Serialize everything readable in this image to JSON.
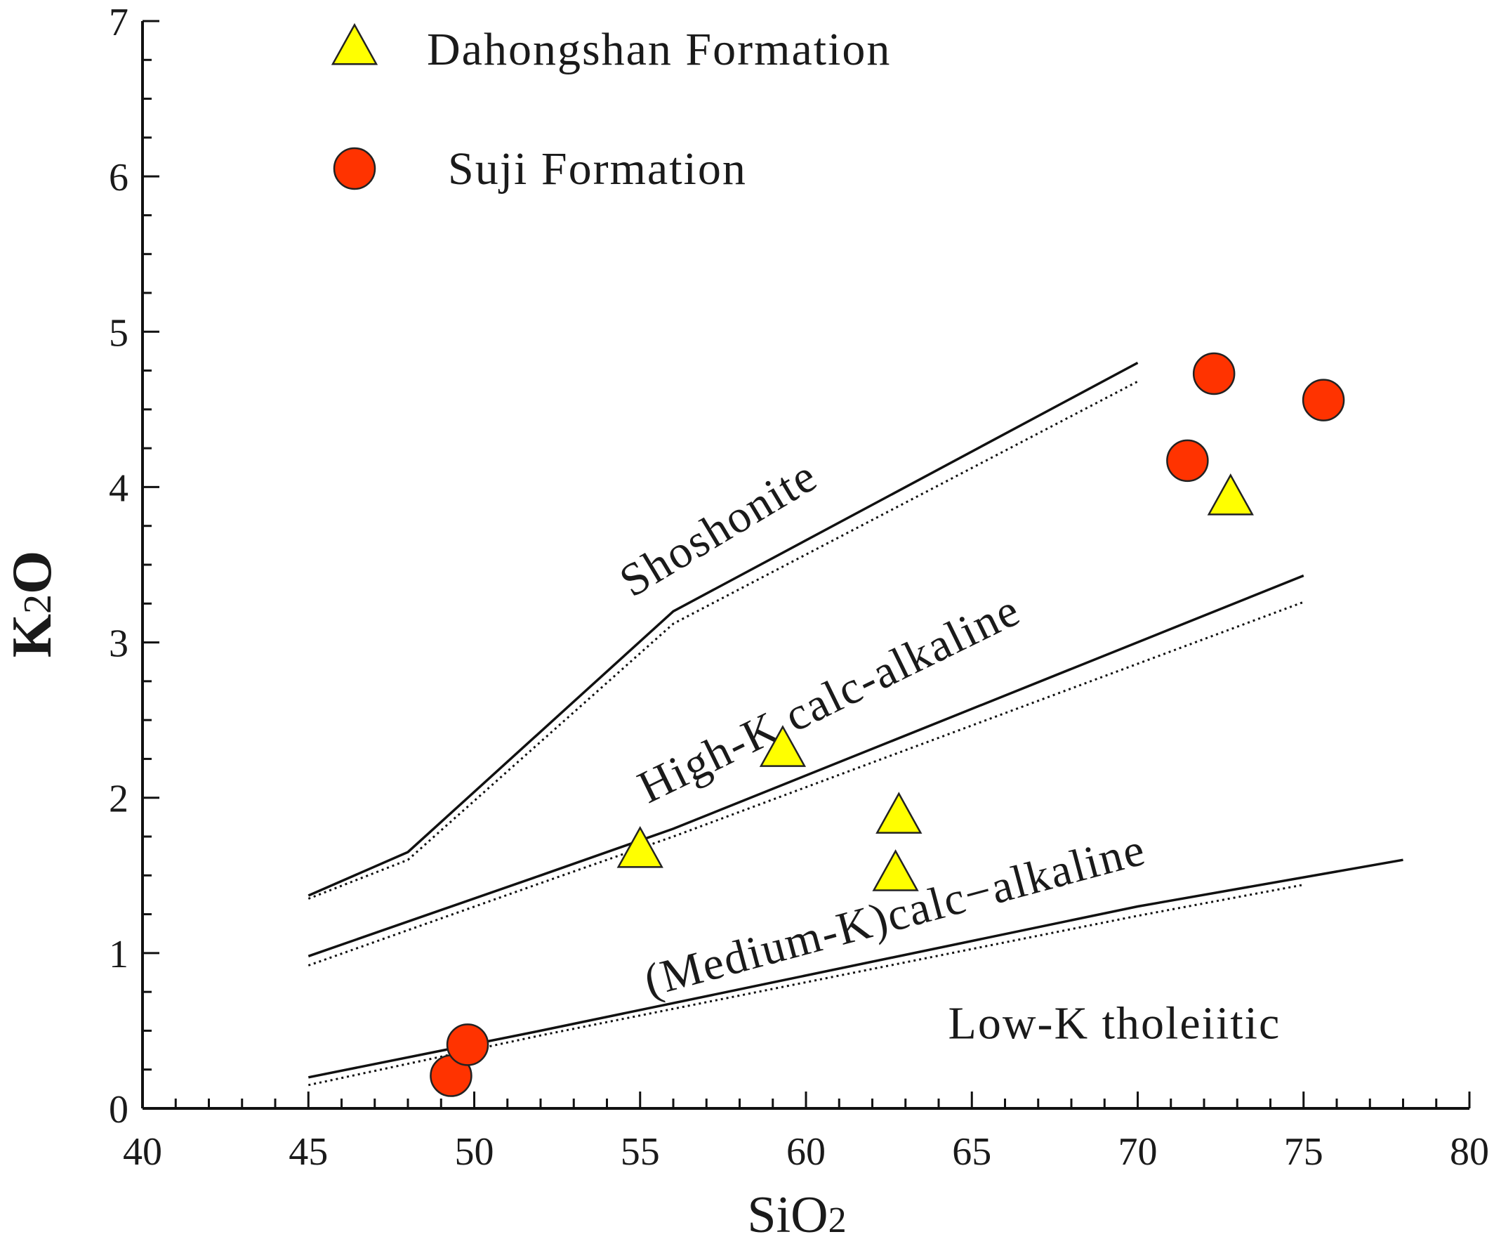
{
  "chart_data": {
    "type": "scatter",
    "title": "",
    "xlabel": {
      "main": "SiO",
      "sub": "2"
    },
    "ylabel": {
      "main": "K",
      "sub": "2",
      "tail": "O"
    },
    "xlim": [
      40,
      80
    ],
    "ylim": [
      0,
      7
    ],
    "x_ticks": [
      40,
      45,
      50,
      55,
      60,
      65,
      70,
      75,
      80
    ],
    "x_tick_labels": [
      "40",
      "45",
      "50",
      "55",
      "60",
      "65",
      "70",
      "75",
      "80"
    ],
    "y_ticks": [
      0,
      1,
      2,
      3,
      4,
      5,
      6,
      7
    ],
    "y_tick_labels": [
      "0",
      "1",
      "2",
      "3",
      "4",
      "5",
      "6",
      "7"
    ],
    "grid": false,
    "legend_position": "top-left",
    "series": [
      {
        "name": "Dahongshan Formation",
        "marker": "triangle",
        "color": "#ffff00",
        "points": [
          [
            55.0,
            1.65
          ],
          [
            59.3,
            2.3
          ],
          [
            62.8,
            1.87
          ],
          [
            62.7,
            1.5
          ],
          [
            72.8,
            3.92
          ]
        ]
      },
      {
        "name": "Suji Formation",
        "marker": "circle",
        "color": "#ff3300",
        "points": [
          [
            49.3,
            0.21
          ],
          [
            49.8,
            0.41
          ],
          [
            71.5,
            4.17
          ],
          [
            72.3,
            4.73
          ],
          [
            75.6,
            4.56
          ]
        ]
      }
    ],
    "boundary_lines": [
      {
        "style": "solid",
        "points": [
          [
            45,
            1.37
          ],
          [
            48,
            1.65
          ],
          [
            56,
            3.2
          ],
          [
            70,
            4.8
          ]
        ]
      },
      {
        "style": "dotted",
        "points": [
          [
            45,
            1.35
          ],
          [
            48,
            1.6
          ],
          [
            56,
            3.12
          ],
          [
            70,
            4.68
          ]
        ]
      },
      {
        "style": "solid",
        "points": [
          [
            45,
            0.98
          ],
          [
            52,
            1.5
          ],
          [
            56,
            1.8
          ],
          [
            75,
            3.43
          ]
        ]
      },
      {
        "style": "dotted",
        "points": [
          [
            45,
            0.92
          ],
          [
            52,
            1.45
          ],
          [
            56,
            1.75
          ],
          [
            75,
            3.26
          ]
        ]
      },
      {
        "style": "solid",
        "points": [
          [
            45,
            0.2
          ],
          [
            52,
            0.5
          ],
          [
            70,
            1.3
          ],
          [
            78,
            1.6
          ]
        ]
      },
      {
        "style": "dotted",
        "points": [
          [
            45,
            0.15
          ],
          [
            52,
            0.47
          ],
          [
            70,
            1.24
          ],
          [
            75,
            1.44
          ]
        ]
      }
    ],
    "field_labels": [
      {
        "text": "Shoshonite",
        "x": 57.6,
        "y": 3.65,
        "angle": 31
      },
      {
        "text": "High-K calc-alkaline",
        "x": 60.9,
        "y": 2.55,
        "angle": 26
      },
      {
        "text": "(Medium-K)calc−alkaline",
        "x": 62.8,
        "y": 1.15,
        "angle": 15
      },
      {
        "text": "Low-K tholeiitic",
        "x": 69.3,
        "y": 0.45,
        "angle": 0
      }
    ]
  }
}
